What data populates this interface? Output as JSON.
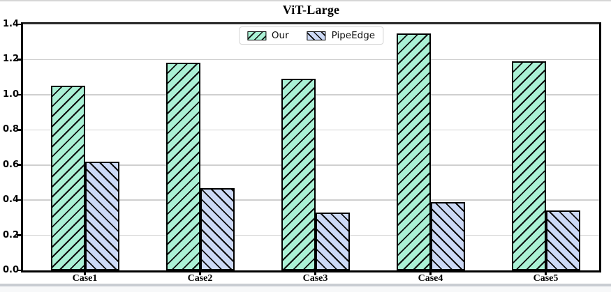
{
  "window": {
    "top_border_color": "#d6d6d6",
    "bottom_band_color": "#c9cdd2",
    "bottom_area_color": "#f7f8f9"
  },
  "chart_data": {
    "type": "bar",
    "title": "ViT-Large",
    "categories": [
      "Case1",
      "Case2",
      "Case3",
      "Case4",
      "Case5"
    ],
    "series": [
      {
        "name": "Our",
        "color": "#aaf1d5",
        "hatch": "/",
        "values": [
          1.05,
          1.18,
          1.09,
          1.35,
          1.19
        ]
      },
      {
        "name": "PipeEdge",
        "color": "#ccd9f6",
        "hatch": "\\",
        "values": [
          0.62,
          0.47,
          0.33,
          0.39,
          0.34
        ]
      }
    ],
    "xlabel": "",
    "ylabel": "",
    "ylim": [
      0,
      1.4
    ],
    "yticks": [
      "0.0",
      "0.2",
      "0.4",
      "0.6",
      "0.8",
      "1.0",
      "1.2",
      "1.4"
    ],
    "grid": true,
    "grid_color": "#cfcfcf",
    "axis_color": "#000000",
    "hatch_color": "#0d0d0d",
    "legend_position": "upper center"
  }
}
